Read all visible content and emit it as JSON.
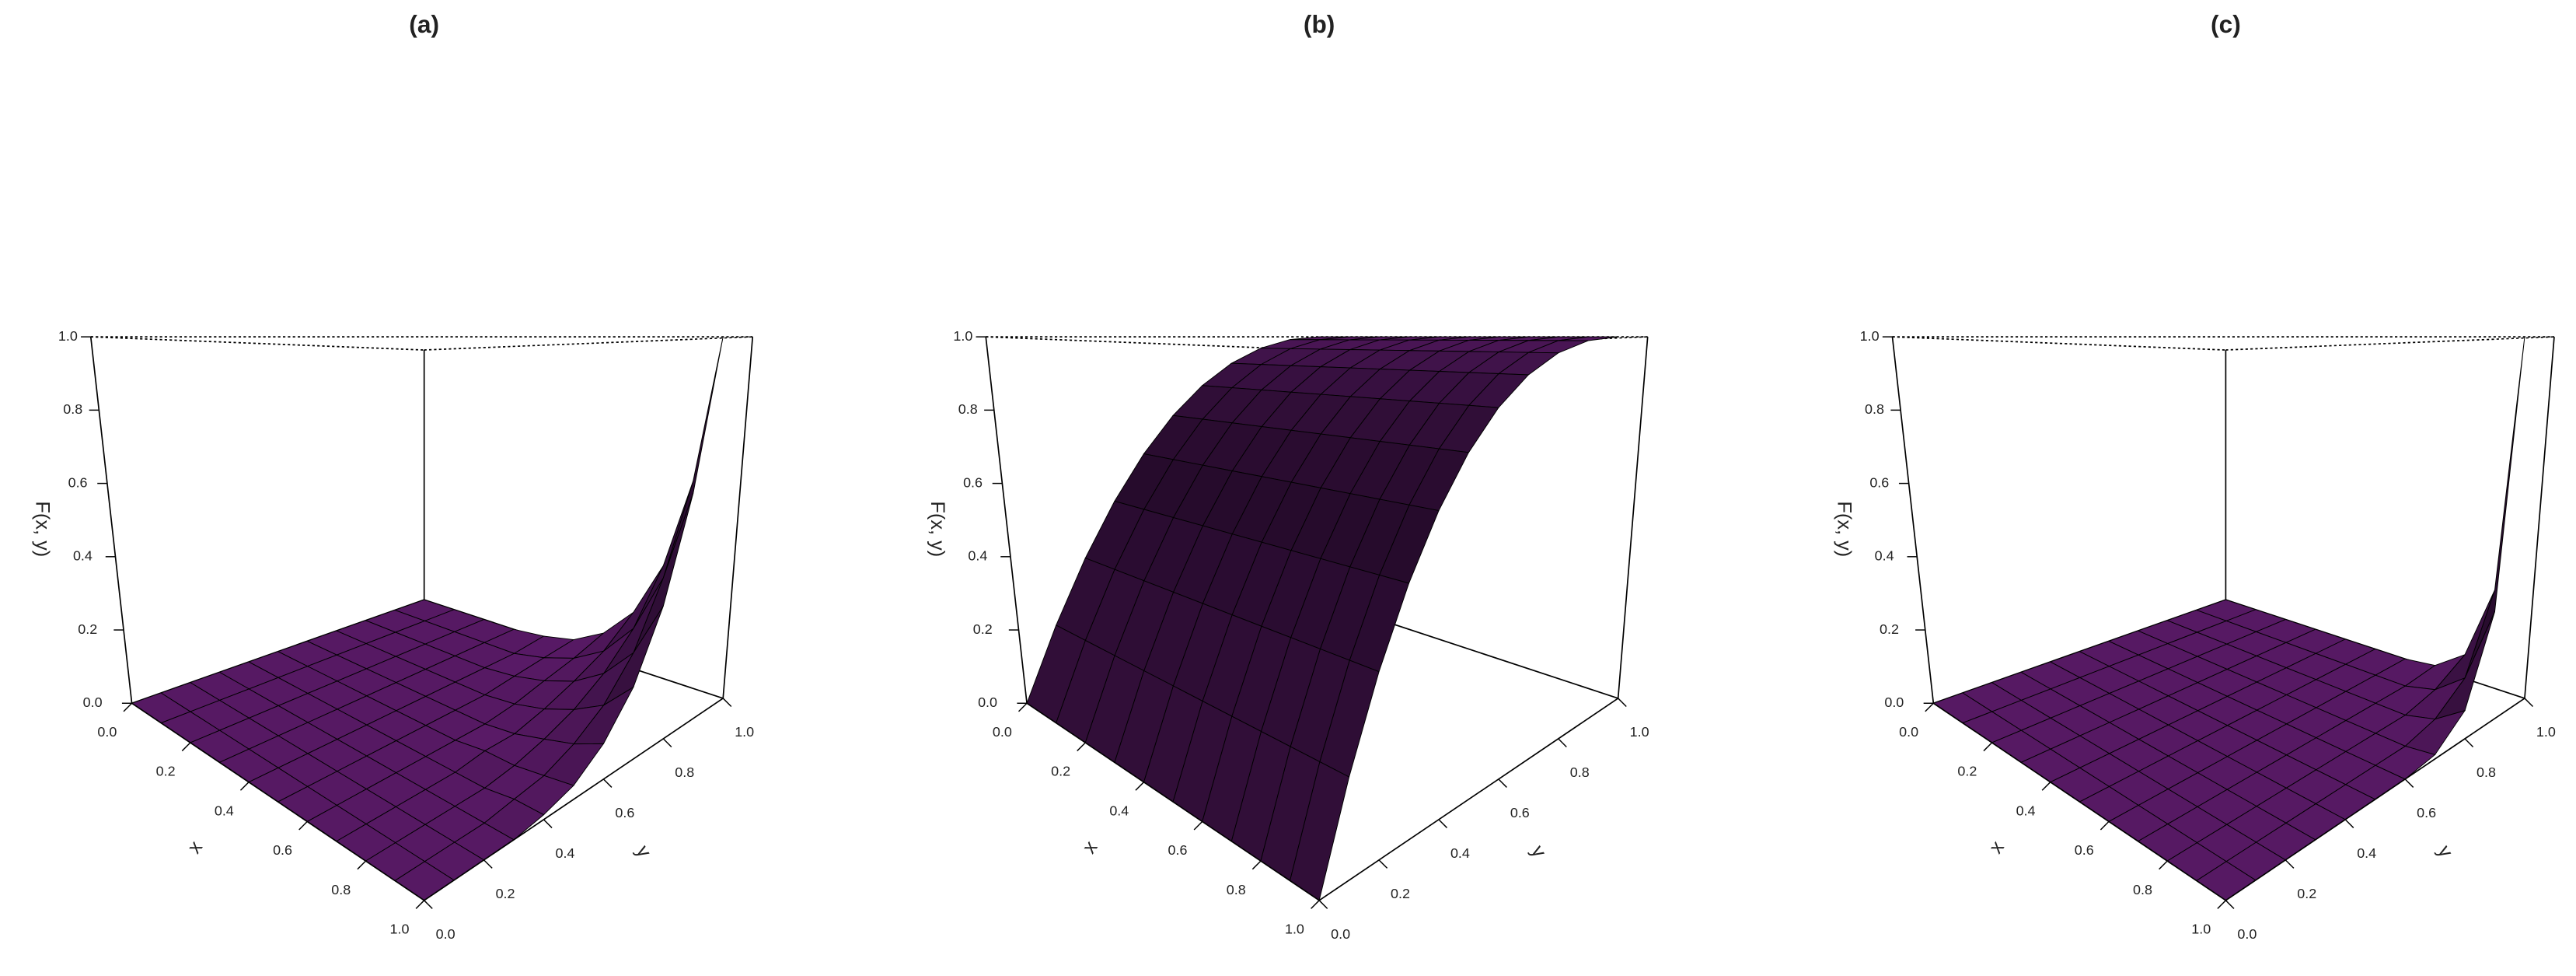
{
  "chart_data": [
    {
      "type": "surface",
      "title": "(a)",
      "xlabel": "x",
      "ylabel": "y",
      "zlabel": "F(x, y)",
      "color": "#6b1f7b",
      "x": [
        0,
        0.1,
        0.2,
        0.3,
        0.4,
        0.5,
        0.6,
        0.7,
        0.8,
        0.9,
        1
      ],
      "y": [
        0,
        0.1,
        0.2,
        0.3,
        0.4,
        0.5,
        0.6,
        0.7,
        0.8,
        0.9,
        1
      ],
      "z": [
        [
          0,
          0,
          0,
          0,
          0,
          0,
          0,
          0,
          0,
          0,
          0
        ],
        [
          0,
          0,
          0,
          0,
          0,
          0,
          0,
          0,
          0,
          0,
          0
        ],
        [
          0,
          0,
          0,
          0,
          0,
          0,
          0,
          0,
          0,
          0,
          0
        ],
        [
          0,
          0,
          0,
          0,
          0,
          0,
          0,
          0,
          0,
          0,
          0
        ],
        [
          0,
          0,
          0,
          0,
          0,
          0,
          0,
          0,
          0,
          0,
          0.01
        ],
        [
          0,
          0,
          0,
          0,
          0,
          0,
          0,
          0,
          0.01,
          0.02,
          0.03
        ],
        [
          0,
          0,
          0,
          0,
          0,
          0,
          0,
          0.01,
          0.03,
          0.05,
          0.08
        ],
        [
          0,
          0,
          0,
          0,
          0,
          0.01,
          0.01,
          0.03,
          0.06,
          0.1,
          0.17
        ],
        [
          0,
          0,
          0,
          0,
          0,
          0.01,
          0.03,
          0.06,
          0.11,
          0.19,
          0.33
        ],
        [
          0,
          0,
          0,
          0,
          0.01,
          0.02,
          0.05,
          0.1,
          0.19,
          0.35,
          0.59
        ],
        [
          0,
          0,
          0,
          0,
          0.01,
          0.03,
          0.08,
          0.17,
          0.33,
          0.59,
          1
        ]
      ],
      "xlim": [
        0,
        1
      ],
      "ylim": [
        0,
        1
      ],
      "zlim": [
        0,
        1
      ],
      "xticks": [
        {
          "value": 0,
          "label": "0.0"
        },
        0.2,
        0.4,
        0.6,
        0.8,
        {
          "value": 1,
          "label": "1.0"
        }
      ],
      "yticks": [
        {
          "value": 0,
          "label": "0.0"
        },
        0.2,
        0.4,
        0.6,
        0.8,
        {
          "value": 1,
          "label": "1.0"
        }
      ],
      "zticks": [
        {
          "value": 0,
          "label": "0.0"
        },
        0.2,
        0.4,
        0.6,
        0.8,
        {
          "value": 1,
          "label": "1.0"
        }
      ]
    },
    {
      "type": "surface",
      "title": "(b)",
      "xlabel": "x",
      "ylabel": "y",
      "zlabel": "F(x, y)",
      "color": "#6b1f7b",
      "x": [
        0,
        0.1,
        0.2,
        0.3,
        0.4,
        0.5,
        0.6,
        0.7,
        0.8,
        0.9,
        1
      ],
      "y": [
        0,
        0.1,
        0.2,
        0.3,
        0.4,
        0.5,
        0.6,
        0.7,
        0.8,
        0.9,
        1
      ],
      "z": [
        [
          0,
          0.19,
          0.36,
          0.51,
          0.64,
          0.75,
          0.84,
          0.91,
          0.96,
          0.99,
          1
        ],
        [
          0,
          0.19,
          0.36,
          0.51,
          0.64,
          0.75,
          0.84,
          0.91,
          0.96,
          0.99,
          1
        ],
        [
          0,
          0.19,
          0.36,
          0.51,
          0.64,
          0.75,
          0.84,
          0.91,
          0.96,
          0.99,
          1
        ],
        [
          0,
          0.19,
          0.36,
          0.51,
          0.64,
          0.75,
          0.84,
          0.91,
          0.96,
          0.99,
          1
        ],
        [
          0,
          0.19,
          0.36,
          0.51,
          0.64,
          0.75,
          0.84,
          0.91,
          0.96,
          0.99,
          1
        ],
        [
          0,
          0.19,
          0.36,
          0.51,
          0.64,
          0.75,
          0.84,
          0.91,
          0.96,
          0.99,
          1
        ],
        [
          0,
          0.19,
          0.36,
          0.51,
          0.64,
          0.75,
          0.84,
          0.91,
          0.96,
          0.99,
          1
        ],
        [
          0,
          0.19,
          0.36,
          0.51,
          0.64,
          0.75,
          0.84,
          0.91,
          0.96,
          0.99,
          1
        ],
        [
          0,
          0.19,
          0.36,
          0.51,
          0.64,
          0.75,
          0.84,
          0.91,
          0.96,
          0.99,
          1
        ],
        [
          0,
          0.19,
          0.36,
          0.51,
          0.64,
          0.75,
          0.84,
          0.91,
          0.96,
          0.99,
          1
        ],
        [
          0,
          0.19,
          0.36,
          0.51,
          0.64,
          0.75,
          0.84,
          0.91,
          0.96,
          0.99,
          1
        ]
      ],
      "xlim": [
        0,
        1
      ],
      "ylim": [
        0,
        1
      ],
      "zlim": [
        0,
        1
      ],
      "xticks": [
        {
          "value": 0,
          "label": "0.0"
        },
        0.2,
        0.4,
        0.6,
        0.8,
        {
          "value": 1,
          "label": "1.0"
        }
      ],
      "yticks": [
        {
          "value": 0,
          "label": "0.0"
        },
        0.2,
        0.4,
        0.6,
        0.8,
        {
          "value": 1,
          "label": "1.0"
        }
      ],
      "zticks": [
        {
          "value": 0,
          "label": "0.0"
        },
        0.2,
        0.4,
        0.6,
        0.8,
        {
          "value": 1,
          "label": "1.0"
        }
      ]
    },
    {
      "type": "surface",
      "title": "(c)",
      "xlabel": "x",
      "ylabel": "y",
      "zlabel": "F(x, y)",
      "color": "#6b1f7b",
      "x": [
        0,
        0.1,
        0.2,
        0.3,
        0.4,
        0.5,
        0.6,
        0.7,
        0.8,
        0.9,
        1
      ],
      "y": [
        0,
        0.1,
        0.2,
        0.3,
        0.4,
        0.5,
        0.6,
        0.7,
        0.8,
        0.9,
        1
      ],
      "z": [
        [
          0,
          0,
          0,
          0,
          0,
          0,
          0,
          0,
          0,
          0,
          0
        ],
        [
          0,
          0,
          0,
          0,
          0,
          0,
          0,
          0,
          0,
          0,
          0
        ],
        [
          0,
          0,
          0,
          0,
          0,
          0,
          0,
          0,
          0,
          0,
          0
        ],
        [
          0,
          0,
          0,
          0,
          0,
          0,
          0,
          0,
          0,
          0,
          0
        ],
        [
          0,
          0,
          0,
          0,
          0,
          0,
          0,
          0,
          0,
          0,
          0
        ],
        [
          0,
          0,
          0,
          0,
          0,
          0,
          0,
          0,
          0,
          0,
          0
        ],
        [
          0,
          0,
          0,
          0,
          0,
          0,
          0,
          0,
          0,
          0,
          0
        ],
        [
          0,
          0,
          0,
          0,
          0,
          0,
          0,
          0,
          0,
          0,
          0.01
        ],
        [
          0,
          0,
          0,
          0,
          0,
          0,
          0,
          0,
          0,
          0.02,
          0.07
        ],
        [
          0,
          0,
          0,
          0,
          0,
          0,
          0,
          0,
          0.02,
          0.08,
          0.28
        ],
        [
          0,
          0,
          0,
          0,
          0,
          0,
          0,
          0.01,
          0.07,
          0.28,
          1
        ]
      ],
      "xlim": [
        0,
        1
      ],
      "ylim": [
        0,
        1
      ],
      "zlim": [
        0,
        1
      ],
      "xticks": [
        {
          "value": 0,
          "label": "0.0"
        },
        0.2,
        0.4,
        0.6,
        0.8,
        {
          "value": 1,
          "label": "1.0"
        }
      ],
      "yticks": [
        {
          "value": 0,
          "label": "0.0"
        },
        0.2,
        0.4,
        0.6,
        0.8,
        {
          "value": 1,
          "label": "1.0"
        }
      ],
      "zticks": [
        {
          "value": 0,
          "label": "0.0"
        },
        0.2,
        0.4,
        0.6,
        0.8,
        {
          "value": 1,
          "label": "1.0"
        }
      ]
    }
  ]
}
